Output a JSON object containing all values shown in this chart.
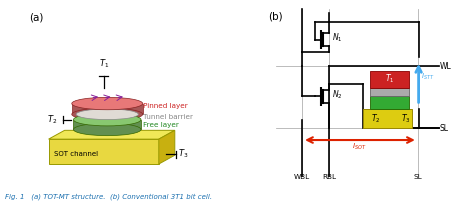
{
  "fig_width": 4.74,
  "fig_height": 2.02,
  "dpi": 100,
  "bg_color": "#ffffff",
  "caption": "Fig. 1   (a) TOT-MT structure.  (b) Conventional 3T1 bit cell.",
  "caption_color": "#1a6faf",
  "panel_a_label": "(a)",
  "panel_b_label": "(b)",
  "pinned_color": "#e87878",
  "tunnel_color": "#d0ccc8",
  "free_color": "#88c870",
  "sot_color": "#e8d840",
  "sot_top_color": "#f0e858",
  "sot_right_color": "#c8b010",
  "label_pinned": "Pinned layer",
  "label_tunnel": "Tunnel barrier",
  "label_free": "Free layer",
  "label_sot": "SOT channel",
  "arrow_stt_color": "#44aaee",
  "arrow_sot_color": "#dd2200",
  "mtj_red_color": "#cc2222",
  "mtj_gray_color": "#aaaaaa",
  "mtj_green_color": "#33aa33",
  "mtj_yellow_color": "#ddcc11",
  "circuit_lw": 1.2,
  "grid_color": "#aaaaaa",
  "pinned_text_color": "#cc2222",
  "tunnel_text_color": "#888888",
  "free_text_color": "#228822"
}
